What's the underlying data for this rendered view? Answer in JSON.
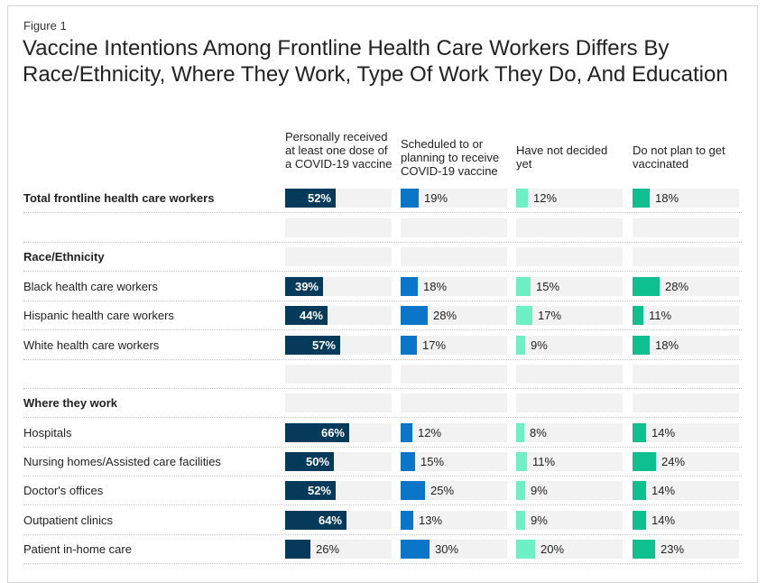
{
  "figure_label": "Figure 1",
  "title": "Vaccine Intentions Among Frontline Health Care Workers Differs By Race/Ethnicity, Where They Work, Type Of Work They Do, And Education",
  "colors": {
    "received": "#063a5b",
    "scheduled": "#0a75c9",
    "undecided": "#6ff0c4",
    "not_plan": "#0ec090",
    "track": "#f2f2f2"
  },
  "chart_data": {
    "type": "bar",
    "orientation": "horizontal",
    "series": [
      {
        "name": "Personally received at least one dose of a COVID-19 vaccine",
        "color": "#063a5b"
      },
      {
        "name": "Scheduled to or planning to receive COVID-19 vaccine",
        "color": "#0a75c9"
      },
      {
        "name": "Have not decided yet",
        "color": "#6ff0c4"
      },
      {
        "name": "Do not plan to get vaccinated",
        "color": "#0ec090"
      }
    ],
    "rows": [
      {
        "label": "Total frontline health care workers",
        "kind": "data",
        "bold": true,
        "values": [
          52,
          19,
          12,
          18
        ]
      },
      {
        "label": "",
        "kind": "spacer"
      },
      {
        "label": "Race/Ethnicity",
        "kind": "header"
      },
      {
        "label": "Black health care workers",
        "kind": "data",
        "values": [
          39,
          18,
          15,
          28
        ]
      },
      {
        "label": "Hispanic health care workers",
        "kind": "data",
        "values": [
          44,
          28,
          17,
          11
        ]
      },
      {
        "label": "White health care workers",
        "kind": "data",
        "values": [
          57,
          17,
          9,
          18
        ]
      },
      {
        "label": "",
        "kind": "spacer"
      },
      {
        "label": "Where they work",
        "kind": "header"
      },
      {
        "label": "Hospitals",
        "kind": "data",
        "values": [
          66,
          12,
          8,
          14
        ]
      },
      {
        "label": "Nursing homes/Assisted care facilities",
        "kind": "data",
        "values": [
          50,
          15,
          11,
          24
        ]
      },
      {
        "label": "Doctor's offices",
        "kind": "data",
        "values": [
          52,
          25,
          9,
          14
        ]
      },
      {
        "label": "Outpatient clinics",
        "kind": "data",
        "values": [
          64,
          13,
          9,
          14
        ]
      },
      {
        "label": "Patient in-home care",
        "kind": "data",
        "values": [
          26,
          30,
          20,
          23
        ]
      }
    ],
    "value_format": "percent",
    "xlim": [
      0,
      100
    ]
  }
}
